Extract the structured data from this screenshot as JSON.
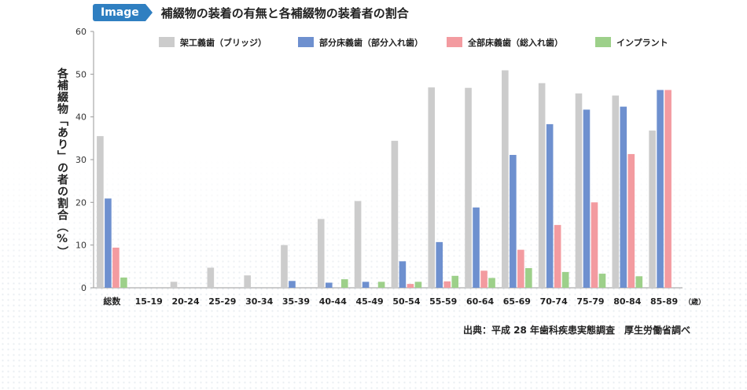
{
  "header": {
    "badge": "Image"
  },
  "chart_data": {
    "type": "bar",
    "title": "補綴物の装着の有無と各補綴物の装着者の割合",
    "ylabel": "各補綴物「あり」の者の割合（%）",
    "xunit": "（歳）",
    "ylim": [
      0,
      60
    ],
    "yticks": [
      0,
      10,
      20,
      30,
      40,
      50,
      60
    ],
    "grid": false,
    "legend": "top",
    "categories": [
      "総数",
      "15-19",
      "20-24",
      "25-29",
      "30-34",
      "35-39",
      "40-44",
      "45-49",
      "50-54",
      "55-59",
      "60-64",
      "65-69",
      "70-74",
      "75-79",
      "80-84",
      "85-89"
    ],
    "series": [
      {
        "name": "架工義歯（ブリッジ）",
        "color": "#cccccc",
        "values": [
          35.5,
          0,
          1.4,
          4.7,
          2.9,
          10.0,
          16.1,
          20.3,
          34.4,
          46.9,
          46.8,
          50.9,
          47.9,
          45.5,
          45.0,
          36.8
        ]
      },
      {
        "name": "部分床義歯（部分入れ歯）",
        "color": "#6e90cf",
        "values": [
          20.9,
          0,
          0,
          0,
          0,
          1.6,
          1.2,
          1.4,
          6.2,
          10.7,
          18.8,
          31.1,
          38.3,
          41.7,
          42.4,
          46.3
        ]
      },
      {
        "name": "全部床義歯（総入れ歯）",
        "color": "#f39ba0",
        "values": [
          9.4,
          0,
          0,
          0,
          0,
          0,
          0,
          0,
          0.9,
          1.5,
          4.0,
          8.9,
          14.7,
          20.0,
          31.3,
          46.3
        ]
      },
      {
        "name": "インプラント",
        "color": "#9dd08a",
        "values": [
          2.4,
          0,
          0,
          0,
          0,
          0,
          2.0,
          1.4,
          1.4,
          2.8,
          2.3,
          4.6,
          3.7,
          3.3,
          2.7,
          0
        ]
      }
    ]
  },
  "source": "出典：平成 28 年歯科疾患実態調査　厚生労働省調べ"
}
